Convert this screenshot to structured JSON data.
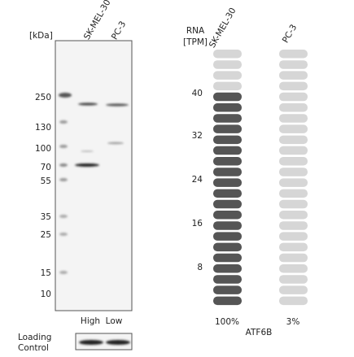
{
  "western_blot": {
    "unit_label": "[kDa]",
    "lanes": [
      "SK-MEL-30",
      "PC-3"
    ],
    "markers": [
      "250",
      "130",
      "100",
      "70",
      "55",
      "35",
      "25",
      "15",
      "10"
    ],
    "lane_levels": [
      "High",
      "Low"
    ],
    "loading_control": [
      "Loading",
      "Control"
    ]
  },
  "rna": {
    "axis_label": [
      "RNA",
      "[TPM]"
    ],
    "cell_lines": [
      "SK-MEL-30",
      "PC-3"
    ],
    "ticks": [
      "40",
      "32",
      "24",
      "16",
      "8"
    ],
    "percentages": [
      "100%",
      "3%"
    ],
    "gene": "ATF6B"
  }
}
